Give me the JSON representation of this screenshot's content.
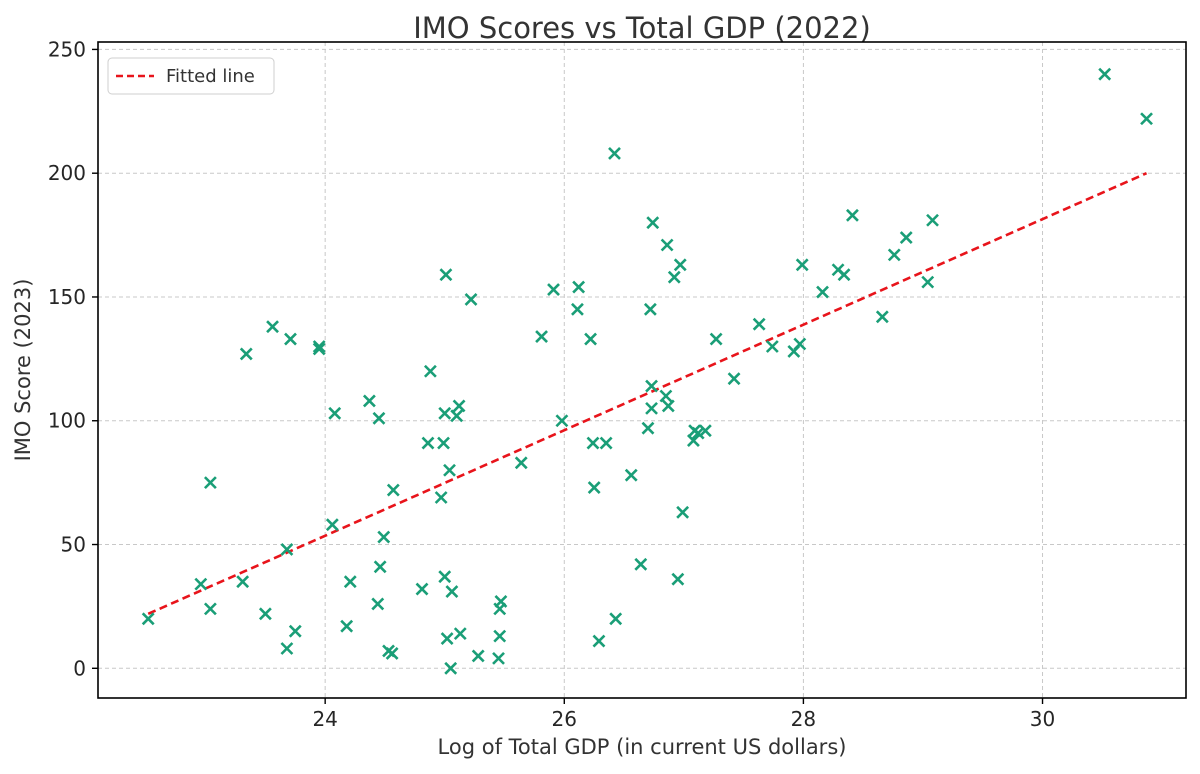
{
  "chart_data": {
    "type": "scatter",
    "title": "IMO Scores vs Total GDP (2022)",
    "xlabel": "Log of Total GDP (in current US dollars)",
    "ylabel": "IMO Score (2023)",
    "xlim": [
      22.1,
      31.2
    ],
    "ylim": [
      -12,
      253
    ],
    "xticks": [
      24,
      26,
      28,
      30
    ],
    "yticks": [
      0,
      50,
      100,
      150,
      200,
      250
    ],
    "grid": true,
    "legend": {
      "position": "top-left",
      "entries": [
        "Fitted line"
      ]
    },
    "colors": {
      "points": "#1a9e77",
      "fit": "#e8141b"
    },
    "fitted_line": {
      "name": "Fitted line",
      "x": [
        22.52,
        30.87
      ],
      "y": [
        22,
        200
      ]
    },
    "points": [
      {
        "x": 22.52,
        "y": 20
      },
      {
        "x": 22.96,
        "y": 34
      },
      {
        "x": 23.04,
        "y": 75
      },
      {
        "x": 23.04,
        "y": 24
      },
      {
        "x": 23.31,
        "y": 35
      },
      {
        "x": 23.34,
        "y": 127
      },
      {
        "x": 23.5,
        "y": 22
      },
      {
        "x": 23.56,
        "y": 138
      },
      {
        "x": 23.68,
        "y": 48
      },
      {
        "x": 23.68,
        "y": 8
      },
      {
        "x": 23.71,
        "y": 133
      },
      {
        "x": 23.75,
        "y": 15
      },
      {
        "x": 23.95,
        "y": 130
      },
      {
        "x": 23.95,
        "y": 129
      },
      {
        "x": 24.06,
        "y": 58
      },
      {
        "x": 24.08,
        "y": 103
      },
      {
        "x": 24.18,
        "y": 17
      },
      {
        "x": 24.21,
        "y": 35
      },
      {
        "x": 24.37,
        "y": 108
      },
      {
        "x": 24.44,
        "y": 26
      },
      {
        "x": 24.45,
        "y": 101
      },
      {
        "x": 24.46,
        "y": 41
      },
      {
        "x": 24.49,
        "y": 53
      },
      {
        "x": 24.53,
        "y": 7
      },
      {
        "x": 24.56,
        "y": 6
      },
      {
        "x": 24.57,
        "y": 72
      },
      {
        "x": 24.81,
        "y": 32
      },
      {
        "x": 24.86,
        "y": 91
      },
      {
        "x": 24.88,
        "y": 120
      },
      {
        "x": 24.97,
        "y": 69
      },
      {
        "x": 24.99,
        "y": 91
      },
      {
        "x": 25.0,
        "y": 103
      },
      {
        "x": 25.0,
        "y": 37
      },
      {
        "x": 25.01,
        "y": 159
      },
      {
        "x": 25.02,
        "y": 12
      },
      {
        "x": 25.04,
        "y": 80
      },
      {
        "x": 25.05,
        "y": 0
      },
      {
        "x": 25.06,
        "y": 31
      },
      {
        "x": 25.1,
        "y": 102
      },
      {
        "x": 25.12,
        "y": 106
      },
      {
        "x": 25.13,
        "y": 14
      },
      {
        "x": 25.22,
        "y": 149
      },
      {
        "x": 25.28,
        "y": 5
      },
      {
        "x": 25.45,
        "y": 4
      },
      {
        "x": 25.46,
        "y": 13
      },
      {
        "x": 25.46,
        "y": 24
      },
      {
        "x": 25.47,
        "y": 27
      },
      {
        "x": 25.64,
        "y": 83
      },
      {
        "x": 25.81,
        "y": 134
      },
      {
        "x": 25.91,
        "y": 153
      },
      {
        "x": 25.98,
        "y": 100
      },
      {
        "x": 26.11,
        "y": 145
      },
      {
        "x": 26.12,
        "y": 154
      },
      {
        "x": 26.22,
        "y": 133
      },
      {
        "x": 26.24,
        "y": 91
      },
      {
        "x": 26.25,
        "y": 73
      },
      {
        "x": 26.29,
        "y": 11
      },
      {
        "x": 26.35,
        "y": 91
      },
      {
        "x": 26.42,
        "y": 208
      },
      {
        "x": 26.43,
        "y": 20
      },
      {
        "x": 26.56,
        "y": 78
      },
      {
        "x": 26.64,
        "y": 42
      },
      {
        "x": 26.7,
        "y": 97
      },
      {
        "x": 26.72,
        "y": 145
      },
      {
        "x": 26.73,
        "y": 114
      },
      {
        "x": 26.73,
        "y": 105
      },
      {
        "x": 26.74,
        "y": 180
      },
      {
        "x": 26.85,
        "y": 110
      },
      {
        "x": 26.86,
        "y": 171
      },
      {
        "x": 26.87,
        "y": 106
      },
      {
        "x": 26.92,
        "y": 158
      },
      {
        "x": 26.95,
        "y": 36
      },
      {
        "x": 26.97,
        "y": 163
      },
      {
        "x": 26.99,
        "y": 63
      },
      {
        "x": 27.08,
        "y": 92
      },
      {
        "x": 27.09,
        "y": 96
      },
      {
        "x": 27.12,
        "y": 95
      },
      {
        "x": 27.18,
        "y": 96
      },
      {
        "x": 27.27,
        "y": 133
      },
      {
        "x": 27.42,
        "y": 117
      },
      {
        "x": 27.63,
        "y": 139
      },
      {
        "x": 27.74,
        "y": 130
      },
      {
        "x": 27.92,
        "y": 128
      },
      {
        "x": 27.97,
        "y": 131
      },
      {
        "x": 27.99,
        "y": 163
      },
      {
        "x": 28.16,
        "y": 152
      },
      {
        "x": 28.29,
        "y": 161
      },
      {
        "x": 28.34,
        "y": 159
      },
      {
        "x": 28.41,
        "y": 183
      },
      {
        "x": 28.66,
        "y": 142
      },
      {
        "x": 28.76,
        "y": 167
      },
      {
        "x": 28.86,
        "y": 174
      },
      {
        "x": 29.04,
        "y": 156
      },
      {
        "x": 29.08,
        "y": 181
      },
      {
        "x": 30.52,
        "y": 240
      },
      {
        "x": 30.87,
        "y": 222
      }
    ]
  }
}
